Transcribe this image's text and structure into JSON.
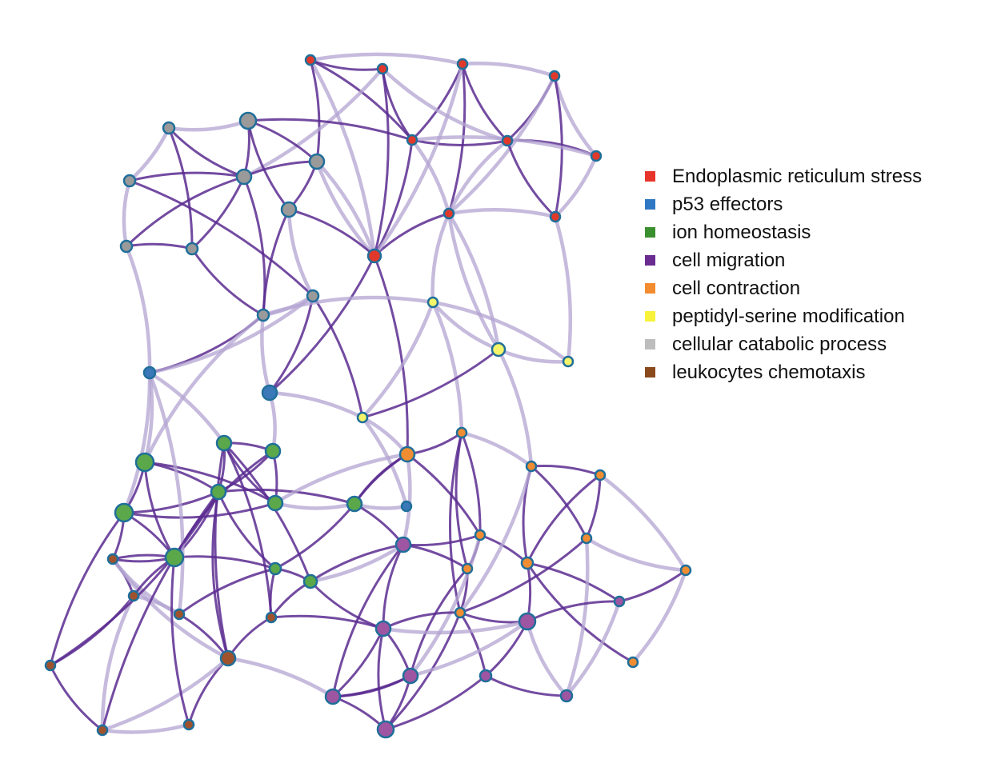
{
  "legend": [
    {
      "label": "Endoplasmic reticulum stress",
      "color": "#e8352b"
    },
    {
      "label": "p53 effectors",
      "color": "#2f78c4"
    },
    {
      "label": "ion homeostasis",
      "color": "#3a8f2e"
    },
    {
      "label": "cell migration",
      "color": "#6a2c91"
    },
    {
      "label": "cell contraction",
      "color": "#f28c2f"
    },
    {
      "label": "peptidyl-serine modification",
      "color": "#f8f23a"
    },
    {
      "label": "cellular catabolic process",
      "color": "#bdbdbd"
    },
    {
      "label": "leukocytes chemotaxis",
      "color": "#8b4a1c"
    }
  ],
  "node_fill_colors": {
    "er_stress": "#e0392b",
    "p53": "#3a78b8",
    "ion": "#5aa84a",
    "migration": "#9e55a2",
    "contraction": "#f08d32",
    "peptidyl": "#f6f46a",
    "catabolic": "#9a9a9a",
    "chemotaxis": "#a0522d"
  },
  "node_border_color": "#1f6f9a",
  "edge_colors": {
    "strong": "#5b2c91",
    "weak": "#b3a4d2"
  }
}
